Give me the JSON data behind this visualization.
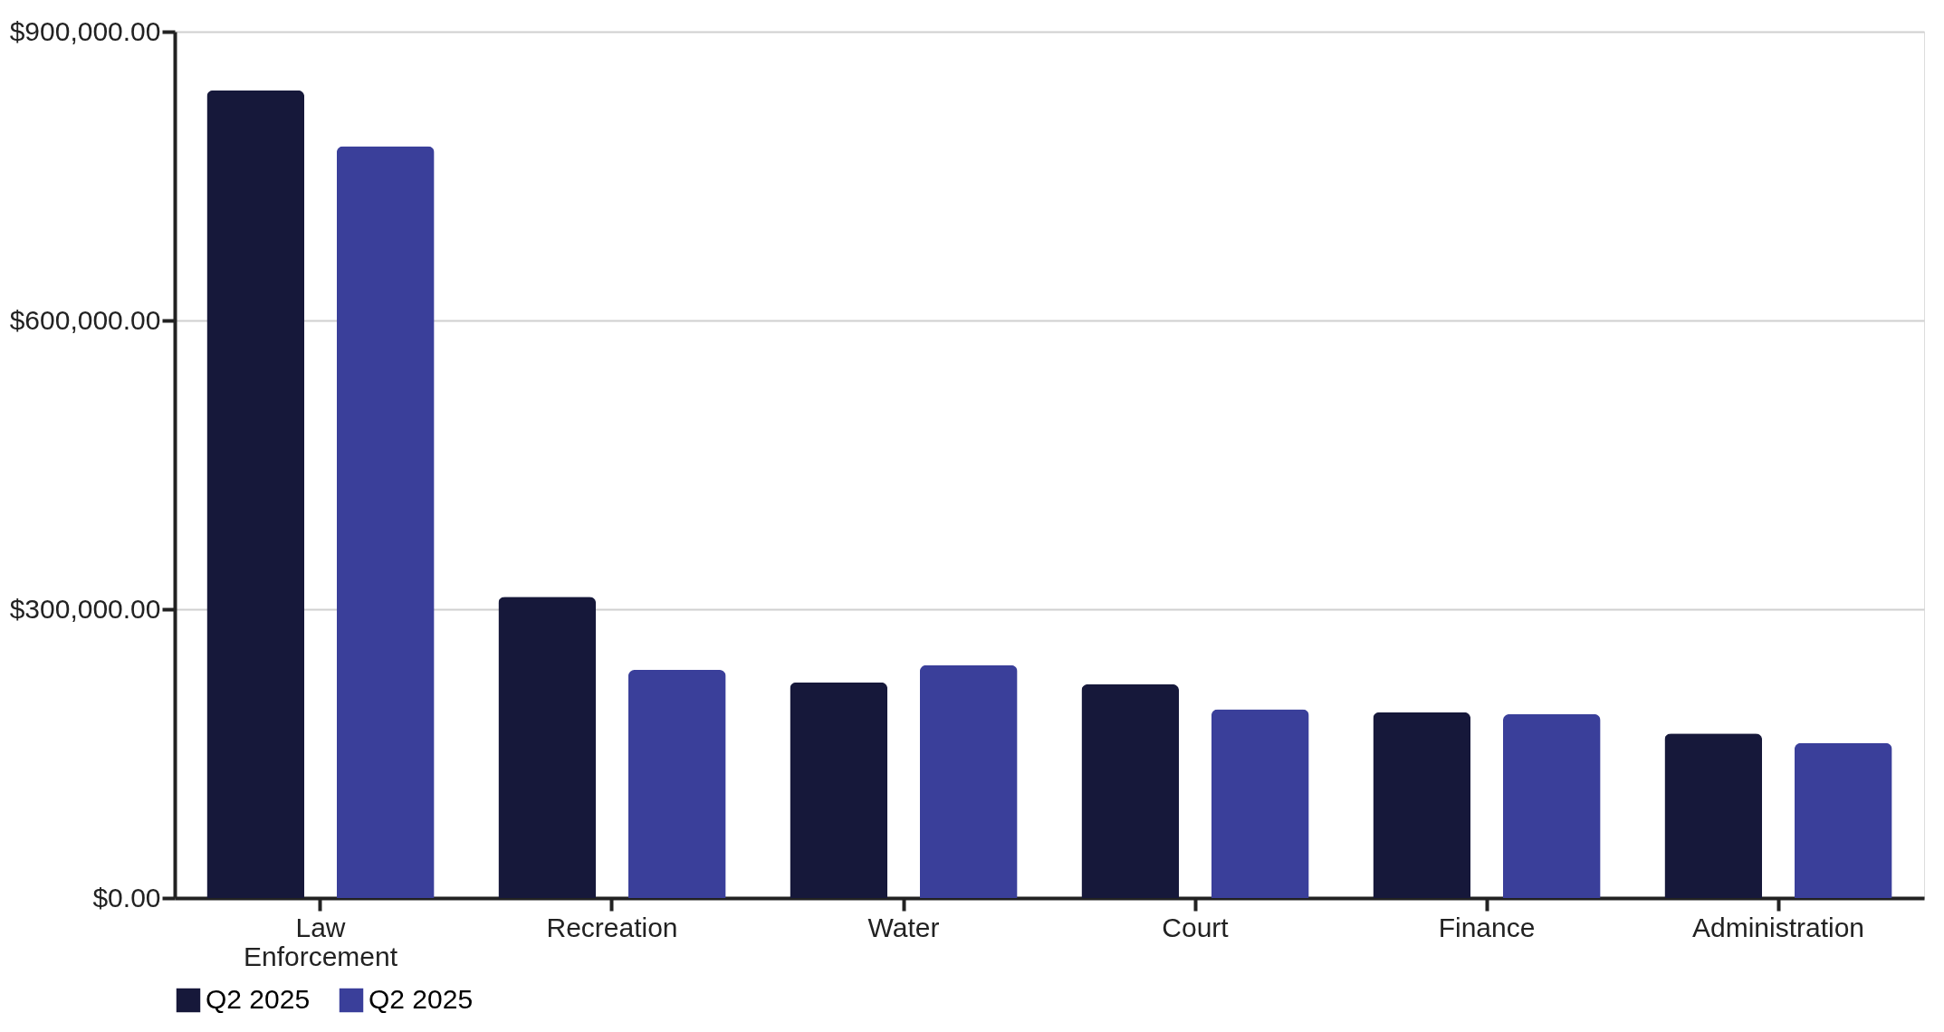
{
  "chart_data": {
    "type": "bar",
    "categories": [
      "Law Enforcement",
      "Recreation",
      "Water",
      "Court",
      "Finance",
      "Administration"
    ],
    "series": [
      {
        "name": "Q2 2025",
        "color": "#16183a",
        "values": [
          839000,
          313000,
          224000,
          222000,
          193000,
          171000
        ]
      },
      {
        "name": "Q2 2025",
        "color": "#3a3f9a",
        "values": [
          781000,
          237000,
          242000,
          196000,
          191000,
          161000
        ]
      }
    ],
    "ylim": [
      0,
      900000
    ],
    "yticks": [
      {
        "value": 0,
        "label": "$0.00"
      },
      {
        "value": 300000,
        "label": "$300,000.00"
      },
      {
        "value": 600000,
        "label": "$600,000.00"
      },
      {
        "value": 900000,
        "label": "$900,000.00"
      }
    ],
    "grid": "y",
    "legend": "bottom"
  }
}
